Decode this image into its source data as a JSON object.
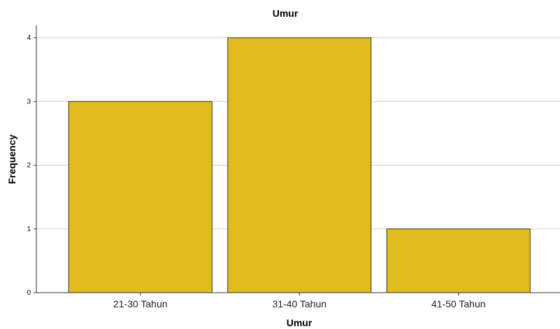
{
  "chart_data": {
    "type": "bar",
    "title": "Umur",
    "xlabel": "Umur",
    "ylabel": "Frequency",
    "categories": [
      "21-30 Tahun",
      "31-40 Tahun",
      "41-50 Tahun"
    ],
    "values": [
      3,
      4,
      1
    ],
    "ylim": [
      0,
      4
    ],
    "yticks": [
      0,
      1,
      2,
      3,
      4
    ],
    "grid": true,
    "bar_color": "#E0BC1E"
  }
}
